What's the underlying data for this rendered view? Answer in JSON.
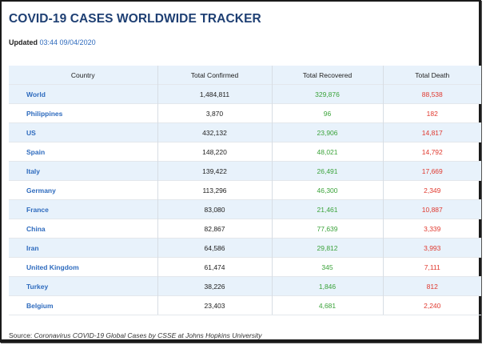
{
  "title": "COVID-19 CASES WORLDWIDE TRACKER",
  "updated": {
    "label": "Updated",
    "value": "03:44 09/04/2020"
  },
  "table": {
    "headers": [
      "Country",
      "Total Confirmed",
      "Total Recovered",
      "Total Death"
    ],
    "rows": [
      [
        "World",
        "1,484,811",
        "329,876",
        "88,538"
      ],
      [
        "Philippines",
        "3,870",
        "96",
        "182"
      ],
      [
        "US",
        "432,132",
        "23,906",
        "14,817"
      ],
      [
        "Spain",
        "148,220",
        "48,021",
        "14,792"
      ],
      [
        "Italy",
        "139,422",
        "26,491",
        "17,669"
      ],
      [
        "Germany",
        "113,296",
        "46,300",
        "2,349"
      ],
      [
        "France",
        "83,080",
        "21,461",
        "10,887"
      ],
      [
        "China",
        "82,867",
        "77,639",
        "3,339"
      ],
      [
        "Iran",
        "64,586",
        "29,812",
        "3,993"
      ],
      [
        "United Kingdom",
        "61,474",
        "345",
        "7,111"
      ],
      [
        "Turkey",
        "38,226",
        "1,846",
        "812"
      ],
      [
        "Belgium",
        "23,403",
        "4,681",
        "2,240"
      ]
    ]
  },
  "source": {
    "label": "Source:",
    "text": "Coronavirus COVID-19 Global Cases by CSSE at Johns Hopkins University"
  },
  "colors": {
    "title": "#1e3f73",
    "link": "#2e6bbe",
    "recovered": "#3aa33a",
    "death": "#e0392f",
    "header_bg": "#e8f2fb"
  }
}
